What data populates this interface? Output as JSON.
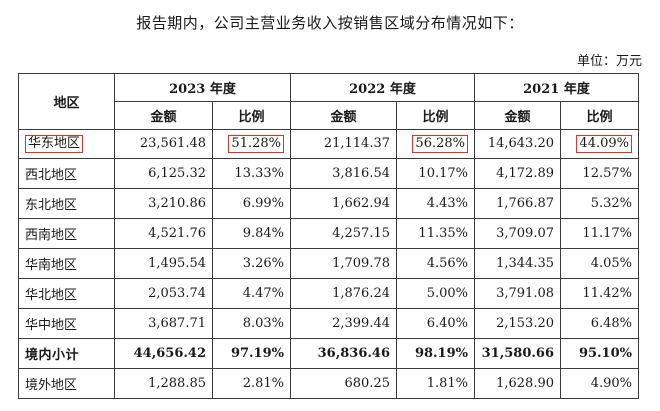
{
  "intro": "报告期内，公司主营业务收入按销售区域分布情况如下：",
  "unit": "单位：万元",
  "table": {
    "region_header": "地区",
    "years": [
      "2023 年度",
      "2022 年度",
      "2021 年度"
    ],
    "amount_header": "金额",
    "ratio_header": "比例",
    "rows": [
      {
        "region": "华东地区",
        "v": [
          "23,561.48",
          "51.28%",
          "21,114.37",
          "56.28%",
          "14,643.20",
          "44.09%"
        ]
      },
      {
        "region": "西北地区",
        "v": [
          "6,125.32",
          "13.33%",
          "3,816.54",
          "10.17%",
          "4,172.89",
          "12.57%"
        ]
      },
      {
        "region": "东北地区",
        "v": [
          "3,210.86",
          "6.99%",
          "1,662.94",
          "4.43%",
          "1,766.87",
          "5.32%"
        ]
      },
      {
        "region": "西南地区",
        "v": [
          "4,521.76",
          "9.84%",
          "4,257.15",
          "11.35%",
          "3,709.07",
          "11.17%"
        ]
      },
      {
        "region": "华南地区",
        "v": [
          "1,495.54",
          "3.26%",
          "1,709.78",
          "4.56%",
          "1,344.35",
          "4.05%"
        ]
      },
      {
        "region": "华北地区",
        "v": [
          "2,053.74",
          "4.47%",
          "1,876.24",
          "5.00%",
          "3,791.08",
          "11.42%"
        ]
      },
      {
        "region": "华中地区",
        "v": [
          "3,687.71",
          "8.03%",
          "2,399.44",
          "6.40%",
          "2,153.20",
          "6.48%"
        ]
      },
      {
        "region": "境内小计",
        "v": [
          "44,656.42",
          "97.19%",
          "36,836.46",
          "98.19%",
          "31,580.66",
          "95.10%"
        ]
      },
      {
        "region": "境外地区",
        "v": [
          "1,288.85",
          "2.81%",
          "680.25",
          "1.81%",
          "1,628.90",
          "4.90%"
        ]
      }
    ]
  },
  "highlight_color": "#e0322b"
}
